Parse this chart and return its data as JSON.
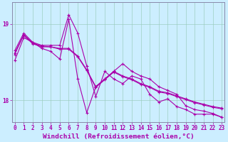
{
  "xlabel": "Windchill (Refroidissement éolien,°C)",
  "background_color": "#cceeff",
  "grid_color": "#99ccbb",
  "line_color": "#aa00aa",
  "hours": [
    0,
    1,
    2,
    3,
    4,
    5,
    6,
    7,
    8,
    9,
    10,
    11,
    12,
    13,
    14,
    15,
    16,
    17,
    18,
    19,
    20,
    21,
    22,
    23
  ],
  "line1": [
    18.65,
    18.88,
    18.76,
    18.72,
    18.72,
    18.72,
    19.12,
    18.88,
    18.45,
    18.05,
    18.38,
    18.28,
    18.22,
    18.32,
    18.28,
    18.08,
    17.98,
    18.02,
    17.92,
    17.88,
    17.82,
    17.82,
    17.82,
    17.78
  ],
  "line2": [
    18.62,
    18.85,
    18.74,
    18.7,
    18.7,
    18.68,
    18.68,
    18.58,
    18.4,
    18.18,
    18.28,
    18.38,
    18.32,
    18.28,
    18.22,
    18.18,
    18.12,
    18.1,
    18.06,
    18.02,
    17.98,
    17.95,
    17.92,
    17.9
  ],
  "line3": [
    18.6,
    18.86,
    18.75,
    18.71,
    18.7,
    18.67,
    18.67,
    18.57,
    18.39,
    18.17,
    18.27,
    18.37,
    18.31,
    18.27,
    18.21,
    18.17,
    18.11,
    18.09,
    18.05,
    18.01,
    17.97,
    17.94,
    17.91,
    17.89
  ],
  "line4": [
    18.52,
    18.82,
    18.76,
    18.68,
    18.64,
    18.54,
    19.06,
    18.28,
    17.84,
    18.18,
    18.28,
    18.38,
    18.48,
    18.38,
    18.32,
    18.28,
    18.18,
    18.13,
    18.08,
    17.93,
    17.88,
    17.86,
    17.83,
    17.78
  ],
  "ylim": [
    17.72,
    19.28
  ],
  "yticks": [
    18.0,
    19.0
  ],
  "xtick_labels": [
    "0",
    "1",
    "2",
    "3",
    "4",
    "5",
    "6",
    "7",
    "8",
    "9",
    "10",
    "11",
    "12",
    "13",
    "14",
    "15",
    "16",
    "17",
    "18",
    "19",
    "20",
    "21",
    "22",
    "23"
  ],
  "tick_fontsize": 5.5,
  "label_fontsize": 6.8
}
